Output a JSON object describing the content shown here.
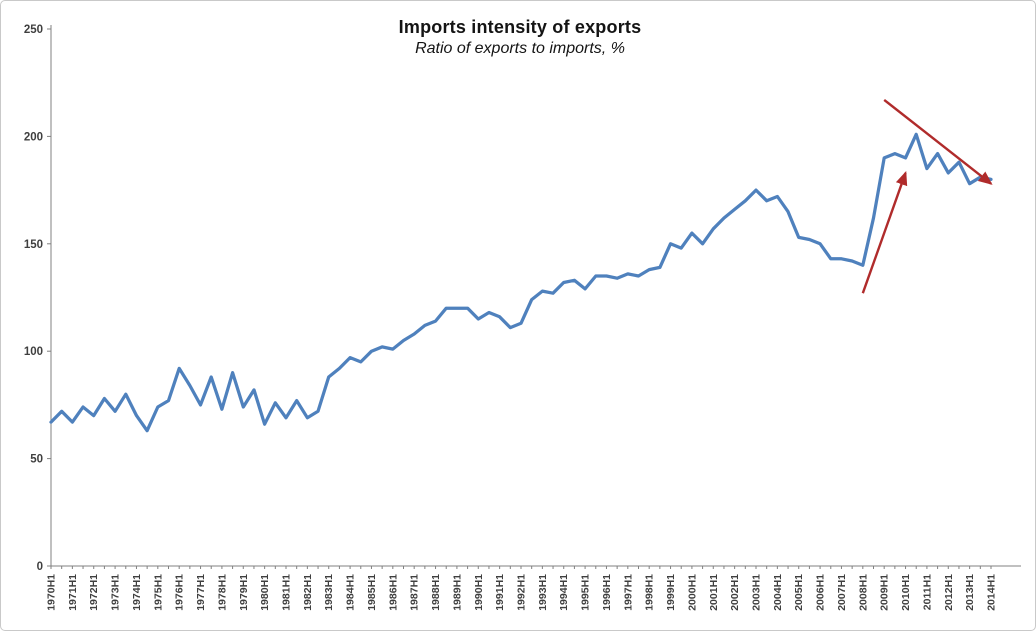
{
  "figure": {
    "background": "#ffffff",
    "border_color": "#c9c9c9"
  },
  "chart_data": {
    "type": "line",
    "title": "Imports intensity of exports",
    "subtitle": "Ratio of exports to imports, %",
    "line_color": "#4F81BD",
    "axis_color": "#808080",
    "tick_label_color": "#3f3f3f",
    "ylim": [
      0,
      250
    ],
    "yticks": [
      0,
      50,
      100,
      150,
      200,
      250
    ],
    "grid": false,
    "legend": "none",
    "x_tick_labels_shown": "every H1 label, rotated 90 degrees",
    "categories": [
      "1970H1",
      "1970H2",
      "1971H1",
      "1971H2",
      "1972H1",
      "1972H2",
      "1973H1",
      "1973H2",
      "1974H1",
      "1974H2",
      "1975H1",
      "1975H2",
      "1976H1",
      "1976H2",
      "1977H1",
      "1977H2",
      "1978H1",
      "1978H2",
      "1979H1",
      "1979H2",
      "1980H1",
      "1980H2",
      "1981H1",
      "1981H2",
      "1982H1",
      "1982H2",
      "1983H1",
      "1983H2",
      "1984H1",
      "1984H2",
      "1985H1",
      "1985H2",
      "1986H1",
      "1986H2",
      "1987H1",
      "1987H2",
      "1988H1",
      "1988H2",
      "1989H1",
      "1989H2",
      "1990H1",
      "1990H2",
      "1991H1",
      "1991H2",
      "1992H1",
      "1992H2",
      "1993H1",
      "1993H2",
      "1994H1",
      "1994H2",
      "1995H1",
      "1995H2",
      "1996H1",
      "1996H2",
      "1997H1",
      "1997H2",
      "1998H1",
      "1998H2",
      "1999H1",
      "1999H2",
      "2000H1",
      "2000H2",
      "2001H1",
      "2001H2",
      "2002H1",
      "2002H2",
      "2003H1",
      "2003H2",
      "2004H1",
      "2004H2",
      "2005H1",
      "2005H2",
      "2006H1",
      "2006H2",
      "2007H1",
      "2007H2",
      "2008H1",
      "2008H2",
      "2009H1",
      "2009H2",
      "2010H1",
      "2010H2",
      "2011H1",
      "2011H2",
      "2012H1",
      "2012H2",
      "2013H1",
      "2013H2",
      "2014H1"
    ],
    "values": [
      67,
      72,
      67,
      74,
      70,
      78,
      72,
      80,
      70,
      63,
      74,
      77,
      92,
      84,
      75,
      88,
      73,
      90,
      74,
      82,
      66,
      76,
      69,
      77,
      69,
      72,
      88,
      92,
      97,
      95,
      100,
      102,
      101,
      105,
      108,
      112,
      114,
      120,
      120,
      120,
      115,
      118,
      116,
      111,
      113,
      124,
      128,
      127,
      132,
      133,
      129,
      135,
      135,
      134,
      136,
      135,
      138,
      139,
      150,
      148,
      155,
      150,
      157,
      162,
      166,
      170,
      175,
      170,
      172,
      165,
      153,
      152,
      150,
      143,
      143,
      142,
      140,
      162,
      190,
      192,
      190,
      201,
      185,
      192,
      183,
      188,
      178,
      181,
      180
    ],
    "annotations": [
      {
        "type": "arrow",
        "name": "rise-arrow",
        "from": {
          "x": "2008H1",
          "y": 127
        },
        "to": {
          "x": "2010H1",
          "y": 183
        },
        "color": "#B02B2B"
      },
      {
        "type": "arrow",
        "name": "decline-arrow",
        "from": {
          "x": "2009H1",
          "y": 217
        },
        "to": {
          "x": "2014H1",
          "y": 178
        },
        "color": "#B02B2B"
      }
    ]
  }
}
